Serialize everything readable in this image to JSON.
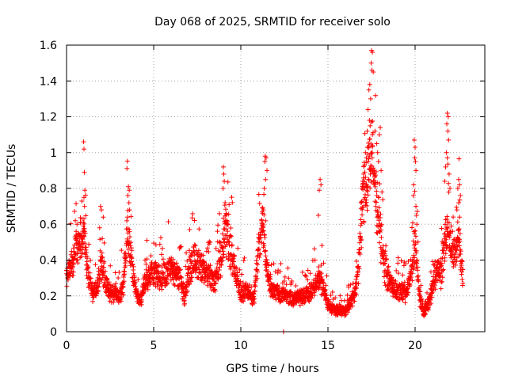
{
  "chart_data": {
    "type": "scatter",
    "title": "Day 068 of 2025, SRMTID for receiver solo",
    "xlabel": "GPS time / hours",
    "ylabel": "SRMTID / TECUs",
    "xlim": [
      0,
      24
    ],
    "ylim": [
      0,
      1.6
    ],
    "x_ticks": [
      0,
      5,
      10,
      15,
      20
    ],
    "x_tick_labels": [
      "0",
      "5",
      "10",
      "15",
      "20"
    ],
    "y_ticks": [
      0,
      0.2,
      0.4,
      0.6,
      0.8,
      1.0,
      1.2,
      1.4,
      1.6
    ],
    "y_tick_labels": [
      "0",
      "0.2",
      "0.4",
      "0.6",
      "0.8",
      "1",
      "1.2",
      "1.4",
      "1.6"
    ],
    "grid": true,
    "marker": "+",
    "color": "#ff0000",
    "series": [
      {
        "name": "SRMTID",
        "profile": [
          [
            0.0,
            0.32
          ],
          [
            0.25,
            0.38
          ],
          [
            0.5,
            0.45
          ],
          [
            0.75,
            0.5
          ],
          [
            1.0,
            0.55
          ],
          [
            1.25,
            0.3
          ],
          [
            1.5,
            0.22
          ],
          [
            1.75,
            0.25
          ],
          [
            2.0,
            0.38
          ],
          [
            2.25,
            0.28
          ],
          [
            2.5,
            0.22
          ],
          [
            2.75,
            0.22
          ],
          [
            3.0,
            0.2
          ],
          [
            3.25,
            0.24
          ],
          [
            3.5,
            0.6
          ],
          [
            3.75,
            0.35
          ],
          [
            4.0,
            0.22
          ],
          [
            4.25,
            0.16
          ],
          [
            4.5,
            0.28
          ],
          [
            5.0,
            0.32
          ],
          [
            5.5,
            0.3
          ],
          [
            6.0,
            0.35
          ],
          [
            6.5,
            0.3
          ],
          [
            6.75,
            0.2
          ],
          [
            7.0,
            0.32
          ],
          [
            7.25,
            0.4
          ],
          [
            7.5,
            0.38
          ],
          [
            8.0,
            0.33
          ],
          [
            8.5,
            0.28
          ],
          [
            8.9,
            0.4
          ],
          [
            9.1,
            0.6
          ],
          [
            9.4,
            0.45
          ],
          [
            9.75,
            0.3
          ],
          [
            10.0,
            0.22
          ],
          [
            10.5,
            0.22
          ],
          [
            10.75,
            0.18
          ],
          [
            11.0,
            0.45
          ],
          [
            11.25,
            0.62
          ],
          [
            11.5,
            0.35
          ],
          [
            11.75,
            0.25
          ],
          [
            12.0,
            0.22
          ],
          [
            12.5,
            0.2
          ],
          [
            13.0,
            0.18
          ],
          [
            13.5,
            0.2
          ],
          [
            14.0,
            0.22
          ],
          [
            14.5,
            0.3
          ],
          [
            14.75,
            0.25
          ],
          [
            15.0,
            0.15
          ],
          [
            15.5,
            0.12
          ],
          [
            16.0,
            0.12
          ],
          [
            16.5,
            0.2
          ],
          [
            16.75,
            0.35
          ],
          [
            17.0,
            0.75
          ],
          [
            17.25,
            0.9
          ],
          [
            17.5,
            1.0
          ],
          [
            17.75,
            0.75
          ],
          [
            18.0,
            0.55
          ],
          [
            18.25,
            0.35
          ],
          [
            18.5,
            0.28
          ],
          [
            19.0,
            0.22
          ],
          [
            19.5,
            0.22
          ],
          [
            19.75,
            0.3
          ],
          [
            20.0,
            0.5
          ],
          [
            20.25,
            0.2
          ],
          [
            20.5,
            0.1
          ],
          [
            20.75,
            0.15
          ],
          [
            21.0,
            0.25
          ],
          [
            21.25,
            0.35
          ],
          [
            21.5,
            0.3
          ],
          [
            21.75,
            0.55
          ],
          [
            22.0,
            0.5
          ],
          [
            22.25,
            0.45
          ],
          [
            22.5,
            0.55
          ],
          [
            22.75,
            0.3
          ]
        ],
        "highlights": [
          [
            0.98,
            1.06
          ],
          [
            1.0,
            1.02
          ],
          [
            1.02,
            0.89
          ],
          [
            1.05,
            0.79
          ],
          [
            1.0,
            0.75
          ],
          [
            1.03,
            0.7
          ],
          [
            1.0,
            0.63
          ],
          [
            0.9,
            0.63
          ],
          [
            0.8,
            0.61
          ],
          [
            0.6,
            0.6
          ],
          [
            0.55,
            0.56
          ],
          [
            1.95,
            0.7
          ],
          [
            2.0,
            0.68
          ],
          [
            1.9,
            0.58
          ],
          [
            2.05,
            0.52
          ],
          [
            3.55,
            0.81
          ],
          [
            3.6,
            0.79
          ],
          [
            3.52,
            0.76
          ],
          [
            3.58,
            0.72
          ],
          [
            3.62,
            0.68
          ],
          [
            3.5,
            0.64
          ],
          [
            9.0,
            0.92
          ],
          [
            9.02,
            0.88
          ],
          [
            9.05,
            0.84
          ],
          [
            8.98,
            0.8
          ],
          [
            9.1,
            0.72
          ],
          [
            9.15,
            0.66
          ],
          [
            9.2,
            0.62
          ],
          [
            11.4,
            0.98
          ],
          [
            11.45,
            0.97
          ],
          [
            11.38,
            0.95
          ],
          [
            11.5,
            0.9
          ],
          [
            11.42,
            0.85
          ],
          [
            11.35,
            0.8
          ],
          [
            11.3,
            0.68
          ],
          [
            11.25,
            0.66
          ],
          [
            11.2,
            0.62
          ],
          [
            14.55,
            0.85
          ],
          [
            14.6,
            0.82
          ],
          [
            14.5,
            0.79
          ],
          [
            14.45,
            0.65
          ],
          [
            17.5,
            1.57
          ],
          [
            17.55,
            1.56
          ],
          [
            17.48,
            1.5
          ],
          [
            17.52,
            1.46
          ],
          [
            17.6,
            1.45
          ],
          [
            17.4,
            1.38
          ],
          [
            17.35,
            1.35
          ],
          [
            17.45,
            1.3
          ],
          [
            17.3,
            1.24
          ],
          [
            17.38,
            1.18
          ],
          [
            17.42,
            1.15
          ],
          [
            17.25,
            1.12
          ],
          [
            17.55,
            1.1
          ],
          [
            17.7,
            1.12
          ],
          [
            17.8,
            1.05
          ],
          [
            17.85,
            1.0
          ],
          [
            17.15,
            1.0
          ],
          [
            17.2,
            0.97
          ],
          [
            17.1,
            0.93
          ],
          [
            18.0,
            1.14
          ],
          [
            17.95,
            1.1
          ],
          [
            17.9,
            0.95
          ],
          [
            18.05,
            0.9
          ],
          [
            18.1,
            0.78
          ],
          [
            17.05,
            0.88
          ],
          [
            17.0,
            0.84
          ],
          [
            16.95,
            0.8
          ],
          [
            16.9,
            0.72
          ],
          [
            19.95,
            1.07
          ],
          [
            20.0,
            1.03
          ],
          [
            19.98,
            0.97
          ],
          [
            20.02,
            0.95
          ],
          [
            20.05,
            0.9
          ],
          [
            19.92,
            0.82
          ],
          [
            19.9,
            0.76
          ],
          [
            20.05,
            0.7
          ],
          [
            20.08,
            0.65
          ],
          [
            20.1,
            0.6
          ],
          [
            21.85,
            1.22
          ],
          [
            21.9,
            1.2
          ],
          [
            21.82,
            1.16
          ],
          [
            21.88,
            1.12
          ],
          [
            21.92,
            1.07
          ],
          [
            21.8,
            1.0
          ],
          [
            21.85,
            0.97
          ],
          [
            21.75,
            0.92
          ],
          [
            21.95,
            0.88
          ],
          [
            21.7,
            0.84
          ],
          [
            22.0,
            0.8
          ],
          [
            22.5,
            0.85
          ],
          [
            22.55,
            0.82
          ],
          [
            22.45,
            0.8
          ],
          [
            22.6,
            0.76
          ],
          [
            22.5,
            0.72
          ],
          [
            22.4,
            0.68
          ],
          [
            22.55,
            0.64
          ],
          [
            12.45,
            0.0
          ]
        ]
      }
    ]
  }
}
